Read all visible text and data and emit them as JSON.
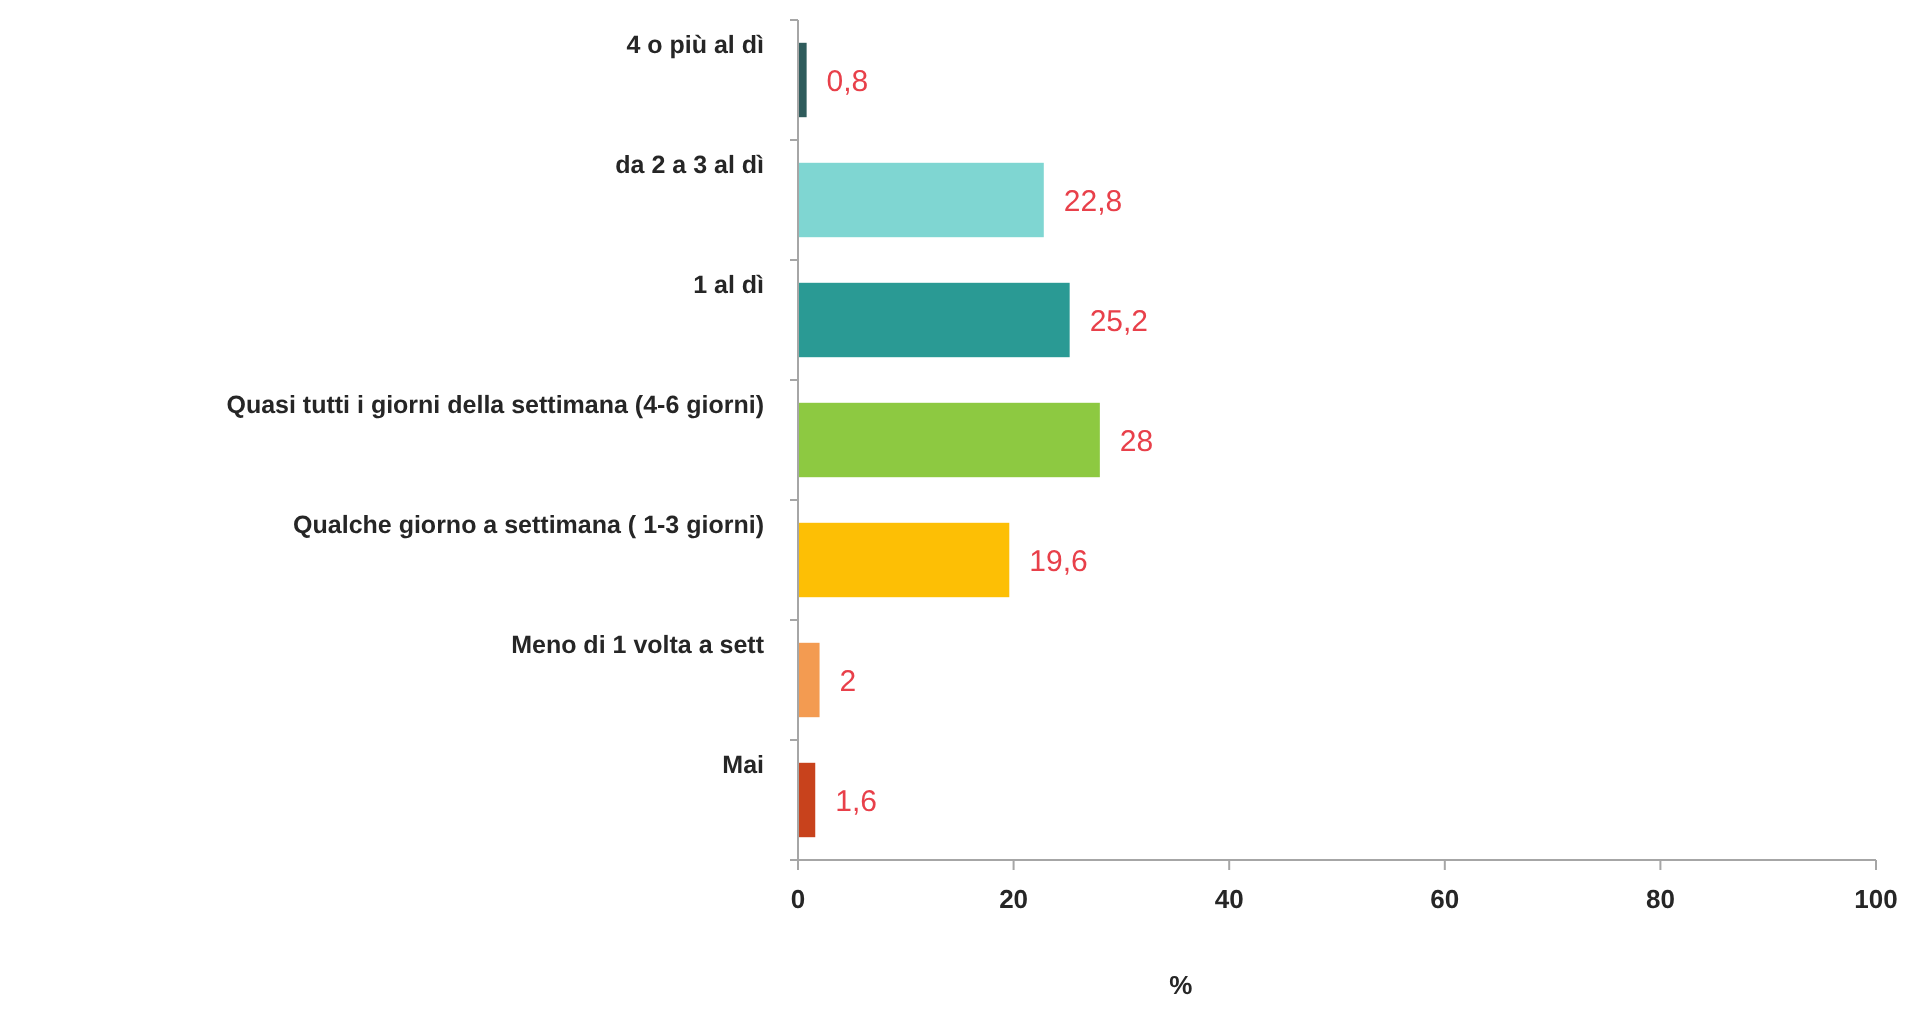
{
  "chart_data": {
    "type": "bar",
    "orientation": "horizontal",
    "xlabel": "%",
    "categories": [
      "4 o più al dì",
      "da 2 a 3 al dì",
      "1 al dì",
      "Quasi tutti i giorni della settimana (4-6 giorni)",
      "Qualche giorno a settimana ( 1-3 giorni)",
      "Meno di 1 volta a sett",
      "Mai"
    ],
    "values": [
      0.8,
      22.8,
      25.2,
      28,
      19.6,
      2,
      1.6
    ],
    "colors": [
      "#2f5c5c",
      "#7fd6d2",
      "#2a9a94",
      "#8dc941",
      "#fdbf05",
      "#f39b51",
      "#c8421c"
    ],
    "value_labels": [
      "0,8",
      "22,8",
      "25,2",
      "28",
      "19,6",
      "2",
      "1,6"
    ],
    "xlim": [
      0,
      100
    ],
    "xticks": [
      0,
      20,
      40,
      60,
      80,
      100
    ],
    "grid": false
  }
}
